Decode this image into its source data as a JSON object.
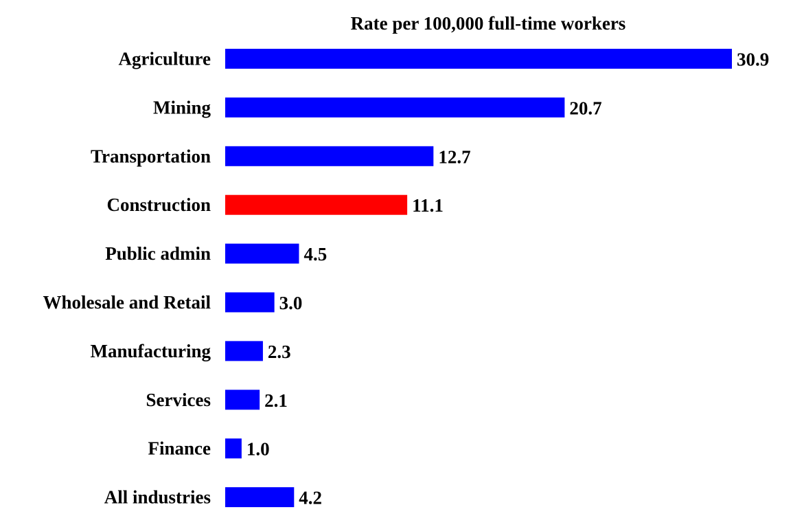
{
  "chart_data": {
    "type": "bar",
    "orientation": "horizontal",
    "title": "Rate per 100,000 full-time workers",
    "xlabel": "",
    "ylabel": "",
    "categories": [
      "Agriculture",
      "Mining",
      "Transportation",
      "Construction",
      "Public admin",
      "Wholesale and Retail",
      "Manufacturing",
      "Services",
      "Finance",
      "All industries"
    ],
    "values": [
      30.9,
      20.7,
      12.7,
      11.1,
      4.5,
      3.0,
      2.3,
      2.1,
      1.0,
      4.2
    ],
    "value_labels": [
      "30.9",
      "20.7",
      "12.7",
      "11.1",
      "4.5",
      "3.0",
      "2.3",
      "2.1",
      "1.0",
      "4.2"
    ],
    "xlim": [
      0,
      30.9
    ],
    "grid": false,
    "legend": "none",
    "colors": {
      "default": "#0000ff",
      "highlight": "#ff0000"
    },
    "highlight_category": "Construction"
  }
}
